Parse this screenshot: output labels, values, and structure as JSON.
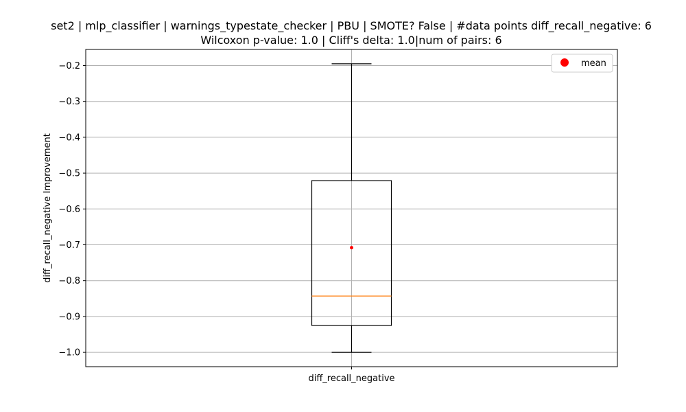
{
  "chart_data": {
    "type": "box",
    "title_line1": "set2 | mlp_classifier | warnings_typestate_checker | PBU | SMOTE? False | #data points diff_recall_negative: 6",
    "title_line2": "Wilcoxon p-value: 1.0 | Cliff's delta: 1.0|num of pairs: 6",
    "xlabel": "",
    "ylabel": "diff_recall_negative Improvement",
    "categories": [
      "diff_recall_negative"
    ],
    "ylim": [
      -1.04,
      -0.155
    ],
    "yticks": [
      -0.2,
      -0.3,
      -0.4,
      -0.5,
      -0.6,
      -0.7,
      -0.8,
      -0.9,
      -1.0
    ],
    "ytick_labels": [
      "−0.2",
      "−0.3",
      "−0.4",
      "−0.5",
      "−0.6",
      "−0.7",
      "−0.8",
      "−0.9",
      "−1.0"
    ],
    "grid": true,
    "box": {
      "whisker_low": -1.0,
      "q1": -0.925,
      "median": -0.843,
      "q3": -0.521,
      "whisker_high": -0.195,
      "mean": -0.708
    },
    "legend": {
      "position": "top-right",
      "entries": [
        {
          "label": "mean",
          "marker": "circle"
        }
      ]
    },
    "colors": {
      "median": "#ff7f0e",
      "mean": "#ff0000",
      "grid": "#b0b0b0",
      "box": "#000000"
    }
  }
}
